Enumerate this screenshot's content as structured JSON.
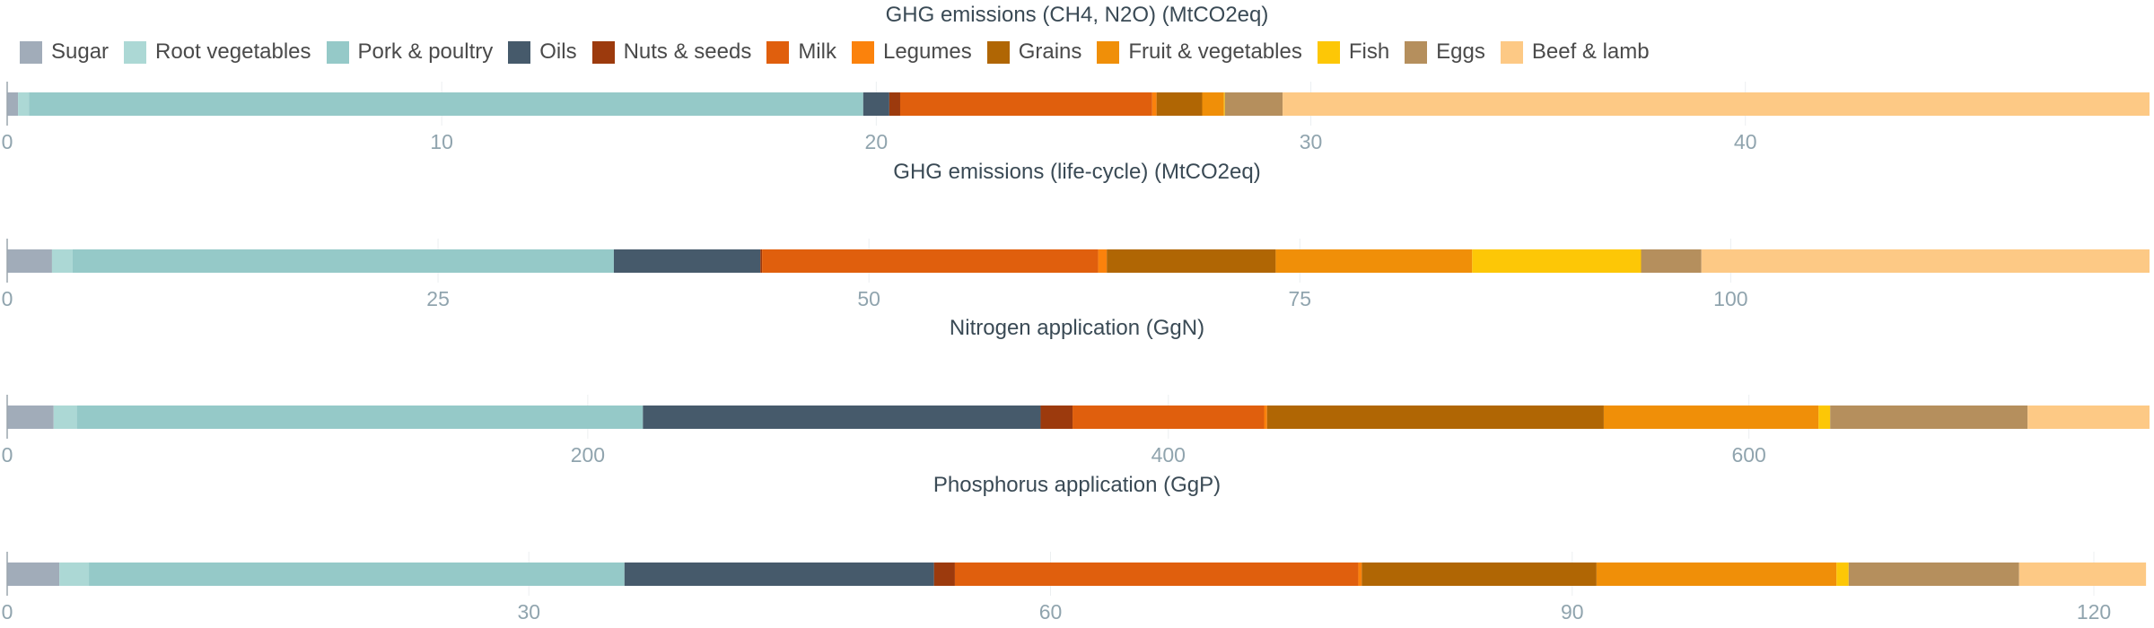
{
  "chart_data": {
    "type": "bar",
    "orientation": "horizontal",
    "stacked": true,
    "legend_position": "top",
    "grid": true,
    "legend": [
      {
        "name": "Sugar",
        "color": "#a1acb9"
      },
      {
        "name": "Root vegetables",
        "color": "#acd8d5"
      },
      {
        "name": "Pork & poultry",
        "color": "#95c9c8"
      },
      {
        "name": "Oils",
        "color": "#465a6b"
      },
      {
        "name": "Nuts & seeds",
        "color": "#9c3a0d"
      },
      {
        "name": "Milk",
        "color": "#e05f0d"
      },
      {
        "name": "Legumes",
        "color": "#fb820c"
      },
      {
        "name": "Grains",
        "color": "#b06604"
      },
      {
        "name": "Fruit & vegetables",
        "color": "#f08f08"
      },
      {
        "name": "Fish",
        "color": "#fdc706"
      },
      {
        "name": "Eggs",
        "color": "#b58f5d"
      },
      {
        "name": "Beef & lamb",
        "color": "#fdc985"
      }
    ],
    "panels": [
      {
        "title": "GHG emissions (CH4, N2O) (MtCO2eq)",
        "xlim": [
          0,
          49.3
        ],
        "ticks": [
          0,
          10,
          20,
          30,
          40
        ],
        "tick_labels": [
          "0",
          "10",
          "20",
          "30",
          "40"
        ],
        "values": [
          0.25,
          0.25,
          19.2,
          0.6,
          0.25,
          5.8,
          0.1,
          1.05,
          0.5,
          0.02,
          1.33,
          19.95
        ]
      },
      {
        "title": "GHG emissions (life-cycle) (MtCO2eq)",
        "xlim": [
          0,
          124.3
        ],
        "ticks": [
          0,
          25,
          50,
          75,
          100
        ],
        "tick_labels": [
          "0",
          "25",
          "50",
          "75",
          "100"
        ],
        "values": [
          2.6,
          1.2,
          31.4,
          8.5,
          0.1,
          19.5,
          0.5,
          9.8,
          11.4,
          9.8,
          3.5,
          26.0
        ]
      },
      {
        "title": "Nitrogen application (GgN)",
        "xlim": [
          0,
          738
        ],
        "ticks": [
          0,
          200,
          400,
          600
        ],
        "tick_labels": [
          "0",
          "200",
          "400",
          "600"
        ],
        "values": [
          16,
          8,
          195,
          137,
          11,
          66,
          1,
          116,
          74,
          4,
          68,
          42
        ]
      },
      {
        "title": "Phosphorus application (GgP)",
        "xlim": [
          0,
          123.2
        ],
        "ticks": [
          0,
          30,
          60,
          90,
          120
        ],
        "tick_labels": [
          "0",
          "30",
          "60",
          "90",
          "120"
        ],
        "values": [
          3.0,
          1.7,
          30.8,
          17.8,
          1.2,
          23.2,
          0.2,
          13.5,
          13.8,
          0.7,
          9.8,
          7.3
        ]
      }
    ]
  }
}
